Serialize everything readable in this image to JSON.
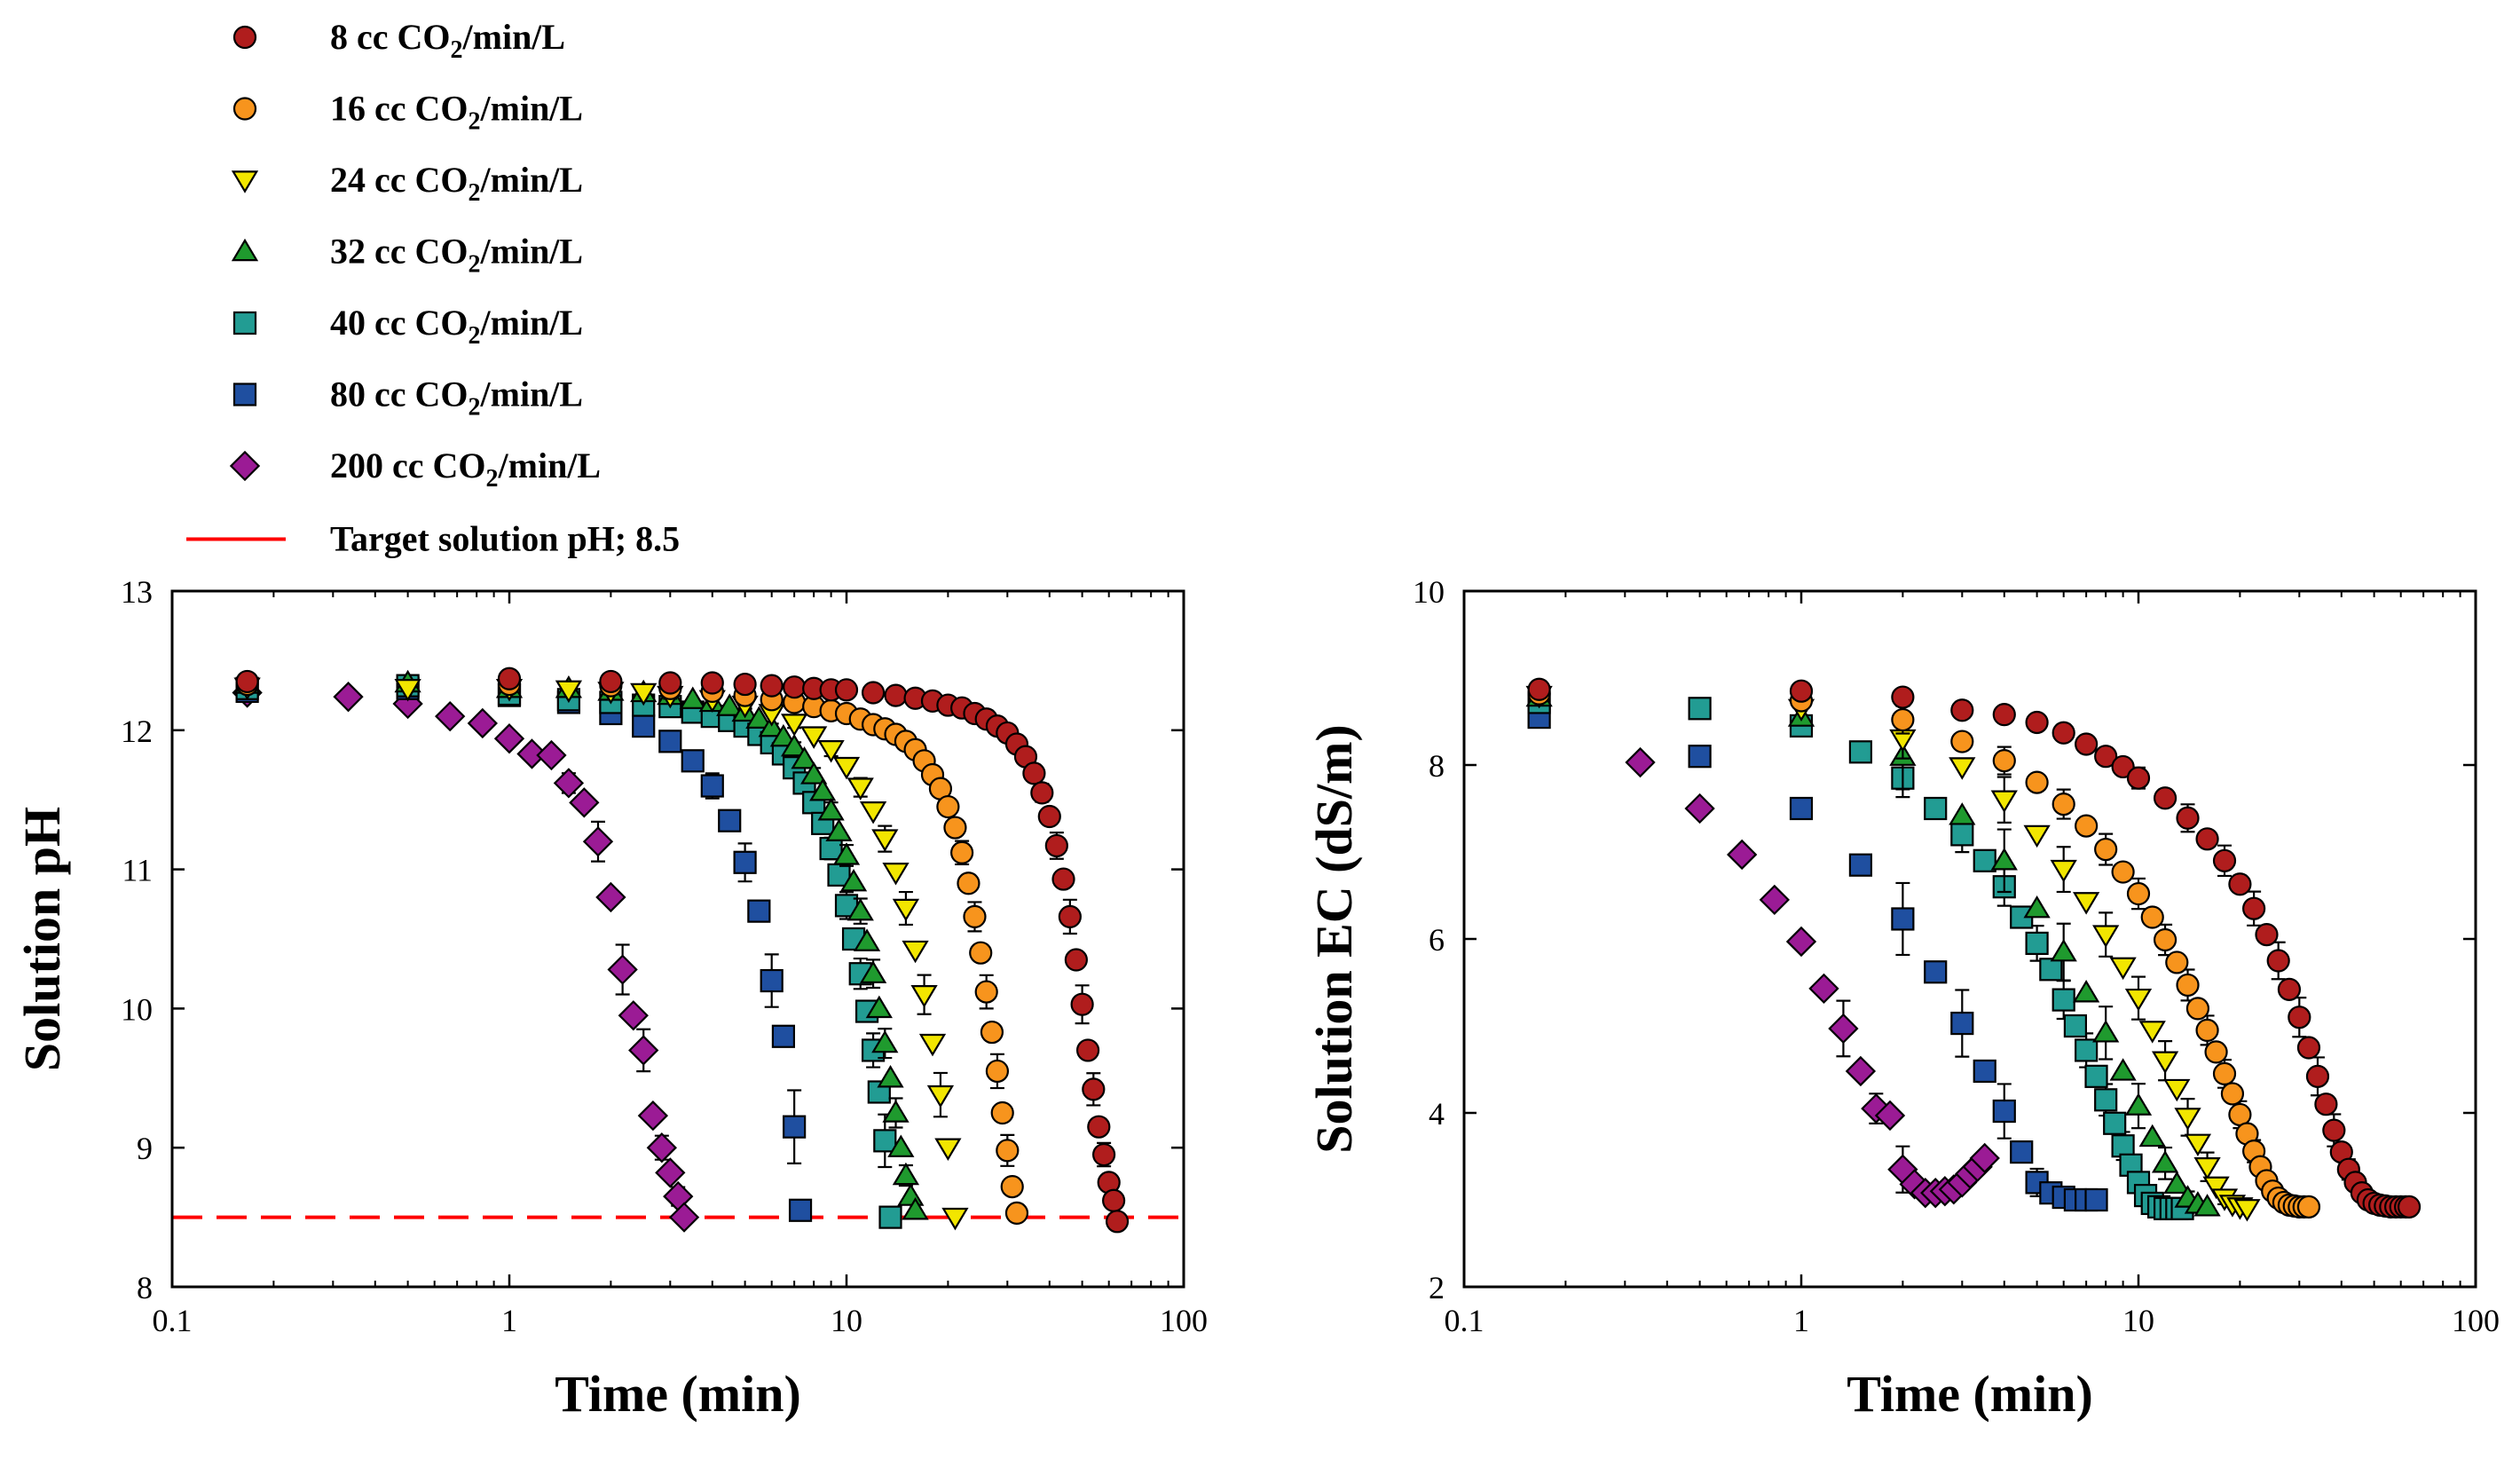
{
  "legend": {
    "items": [
      {
        "series": 0,
        "label_prefix": "8 cc CO",
        "sub": "2",
        "label_suffix": "/min/L"
      },
      {
        "series": 1,
        "label_prefix": "16 cc CO",
        "sub": "2",
        "label_suffix": "/min/L"
      },
      {
        "series": 2,
        "label_prefix": "24 cc CO",
        "sub": "2",
        "label_suffix": "/min/L"
      },
      {
        "series": 3,
        "label_prefix": "32 cc CO",
        "sub": "2",
        "label_suffix": "/min/L"
      },
      {
        "series": 4,
        "label_prefix": "40 cc CO",
        "sub": "2",
        "label_suffix": "/min/L"
      },
      {
        "series": 5,
        "label_prefix": "80 cc CO",
        "sub": "2",
        "label_suffix": "/min/L"
      },
      {
        "series": 6,
        "label_prefix": "200 cc CO",
        "sub": "2",
        "label_suffix": "/min/L"
      }
    ],
    "target_label": "Target solution pH; 8.5"
  },
  "series_style": [
    {
      "marker": "circle",
      "color": "#b01d1d"
    },
    {
      "marker": "circle",
      "color": "#f7941d"
    },
    {
      "marker": "tri-down",
      "color": "#f2e600"
    },
    {
      "marker": "tri-up",
      "color": "#1f9a2e"
    },
    {
      "marker": "square",
      "color": "#229c93"
    },
    {
      "marker": "square",
      "color": "#1f4fa0"
    },
    {
      "marker": "diamond",
      "color": "#9b1b95"
    }
  ],
  "target_line": {
    "value": 8.5,
    "color": "#ff0000"
  },
  "chart_data": [
    {
      "type": "scatter",
      "panel": "left",
      "xlabel": "Time (min)",
      "ylabel": "Solution pH",
      "xscale": "log",
      "xlim": [
        0.1,
        100
      ],
      "ylim": [
        8,
        13
      ],
      "xticks": [
        0.1,
        1,
        10,
        100
      ],
      "xtick_labels": [
        "0.1",
        "1",
        "10",
        "100"
      ],
      "yticks": [
        8,
        9,
        10,
        11,
        12,
        13
      ],
      "ytick_labels": [
        "8",
        "9",
        "10",
        "11",
        "12",
        "13"
      ],
      "series": [
        {
          "name": "8 cc CO2/min/L",
          "tmax": 63.5,
          "alpha": 0.13,
          "beta": 7,
          "x": [
            0.167,
            1,
            2,
            3,
            4,
            5,
            6,
            7,
            8,
            9,
            10,
            12,
            14,
            16,
            18,
            20,
            22,
            24,
            26,
            28,
            30,
            32,
            34,
            36,
            38,
            40,
            42,
            44,
            46,
            48,
            50,
            52,
            54,
            56,
            58,
            60,
            62,
            63.5
          ],
          "y": [
            12.35,
            12.37,
            12.35,
            12.34,
            12.34,
            12.33,
            12.32,
            12.31,
            12.3,
            12.29,
            12.29,
            12.27,
            12.25,
            12.23,
            12.21,
            12.18,
            12.16,
            12.12,
            12.08,
            12.03,
            11.98,
            11.9,
            11.81,
            11.69,
            11.55,
            11.38,
            11.17,
            10.93,
            10.66,
            10.35,
            10.03,
            9.7,
            9.42,
            9.15,
            8.95,
            8.75,
            8.62,
            8.47
          ]
        },
        {
          "name": "16 cc CO2/min/L",
          "tmax": 32,
          "alpha": 0.35,
          "beta": 6,
          "x": [
            0.167,
            1,
            2,
            3,
            4,
            5,
            6,
            7,
            8,
            9,
            10,
            11,
            12,
            13,
            14,
            15,
            16,
            17,
            18,
            19,
            20,
            21,
            22,
            23,
            24,
            25,
            26,
            27,
            28,
            29,
            30,
            31,
            32
          ],
          "y": [
            12.33,
            12.33,
            12.32,
            12.3,
            12.28,
            12.25,
            12.22,
            12.2,
            12.17,
            12.14,
            12.12,
            12.08,
            12.04,
            12.01,
            11.97,
            11.92,
            11.86,
            11.78,
            11.68,
            11.58,
            11.45,
            11.3,
            11.12,
            10.9,
            10.66,
            10.4,
            10.12,
            9.83,
            9.55,
            9.25,
            8.98,
            8.72,
            8.53
          ]
        },
        {
          "name": "24 cc CO2/min/L",
          "tmax": 21,
          "alpha": 0.55,
          "beta": 5,
          "x": [
            0.167,
            0.5,
            1,
            1.5,
            2,
            2.5,
            3,
            4,
            5,
            6,
            7,
            8,
            9,
            10,
            11,
            12,
            13,
            14,
            15,
            16,
            17,
            18,
            19,
            20,
            21
          ],
          "y": [
            12.31,
            12.3,
            12.3,
            12.29,
            12.28,
            12.27,
            12.25,
            12.22,
            12.18,
            12.12,
            12.05,
            11.96,
            11.86,
            11.74,
            11.59,
            11.42,
            11.22,
            10.98,
            10.72,
            10.42,
            10.1,
            9.75,
            9.38,
            9.0,
            8.5
          ]
        },
        {
          "name": "32 cc CO2/min/L",
          "tmax": 16,
          "alpha": 0.7,
          "beta": 4.5,
          "x": [
            0.167,
            0.5,
            1,
            1.5,
            2,
            2.5,
            3,
            3.5,
            4,
            4.5,
            5,
            5.5,
            6,
            6.5,
            7,
            7.5,
            8,
            8.5,
            9,
            9.5,
            10,
            10.5,
            11,
            11.5,
            12,
            12.5,
            13,
            13.5,
            14,
            14.5,
            15,
            15.5,
            16
          ],
          "y": [
            12.33,
            12.34,
            12.3,
            12.3,
            12.28,
            12.27,
            12.25,
            12.22,
            12.2,
            12.17,
            12.13,
            12.08,
            12.02,
            11.95,
            11.88,
            11.79,
            11.68,
            11.56,
            11.42,
            11.27,
            11.1,
            10.91,
            10.7,
            10.48,
            10.25,
            10.0,
            9.75,
            9.5,
            9.25,
            9.0,
            8.8,
            8.65,
            8.55
          ]
        },
        {
          "name": "40 cc CO2/min/L",
          "tmax": 13.5,
          "alpha": 0.8,
          "beta": 4.2,
          "x": [
            0.167,
            0.5,
            1,
            1.5,
            2,
            2.5,
            3,
            3.5,
            4,
            4.5,
            5,
            5.5,
            6,
            6.5,
            7,
            7.5,
            8,
            8.5,
            9,
            9.5,
            10,
            10.5,
            11,
            11.5,
            12,
            12.5,
            13,
            13.5
          ],
          "y": [
            12.3,
            12.32,
            12.26,
            12.22,
            12.2,
            12.18,
            12.17,
            12.13,
            12.1,
            12.07,
            12.03,
            11.97,
            11.91,
            11.83,
            11.73,
            11.62,
            11.48,
            11.33,
            11.15,
            10.96,
            10.74,
            10.5,
            10.25,
            9.98,
            9.7,
            9.4,
            9.05,
            8.5
          ]
        },
        {
          "name": "80 cc CO2/min/L",
          "tmax": 7.3,
          "alpha": 1.1,
          "beta": 3.5,
          "x": [
            0.167,
            0.5,
            1,
            1.5,
            2,
            2.5,
            3,
            3.5,
            4,
            4.5,
            5,
            5.5,
            6,
            6.5,
            7,
            7.3
          ],
          "y": [
            12.28,
            12.3,
            12.25,
            12.2,
            12.12,
            12.03,
            11.92,
            11.78,
            11.6,
            11.35,
            11.05,
            10.7,
            10.2,
            9.8,
            9.15,
            8.55
          ]
        },
        {
          "name": "200 cc CO2/min/L",
          "tmax": 3.3,
          "alpha": 2.1,
          "beta": 2.5,
          "x": [
            0.167,
            0.333,
            0.5,
            0.667,
            0.833,
            1,
            1.167,
            1.333,
            1.5,
            1.667,
            1.833,
            2,
            2.167,
            2.333,
            2.5,
            2.667,
            2.833,
            3,
            3.167,
            3.3
          ],
          "y": [
            12.27,
            12.24,
            12.19,
            12.1,
            12.05,
            11.94,
            11.83,
            11.82,
            11.62,
            11.48,
            11.2,
            10.8,
            10.28,
            9.95,
            9.7,
            9.23,
            9.0,
            8.82,
            8.65,
            8.5
          ]
        }
      ],
      "reference_line": {
        "y": 8.5,
        "label": "Target solution pH; 8.5"
      }
    },
    {
      "type": "scatter",
      "panel": "right",
      "xlabel": "Time (min)",
      "ylabel": "Solution EC (dS/m)",
      "xscale": "log",
      "xlim": [
        0.1,
        100
      ],
      "ylim": [
        2,
        10
      ],
      "xticks": [
        0.1,
        1,
        10,
        100
      ],
      "xtick_labels": [
        "0.1",
        "1",
        "10",
        "100"
      ],
      "yticks": [
        2,
        4,
        6,
        8,
        10
      ],
      "ytick_labels": [
        "2",
        "4",
        "6",
        "8",
        "10"
      ],
      "series": [
        {
          "name": "8 cc CO2/min/L",
          "tmax": 63.5,
          "tmin": 2,
          "x": [
            0.167,
            1,
            2,
            3,
            4,
            5,
            6,
            7,
            8,
            9,
            10,
            12,
            14,
            16,
            18,
            20,
            22,
            24,
            26,
            28,
            30,
            32,
            34,
            36,
            38,
            40,
            42,
            44,
            46,
            48,
            50,
            52,
            54,
            56,
            58,
            60,
            62,
            63.5
          ],
          "y": [
            8.87,
            8.85,
            8.78,
            8.63,
            8.58,
            8.49,
            8.37,
            8.24,
            8.1,
            7.98,
            7.85,
            7.62,
            7.39,
            7.15,
            6.9,
            6.63,
            6.35,
            6.05,
            5.75,
            5.42,
            5.1,
            4.75,
            4.42,
            4.1,
            3.8,
            3.55,
            3.35,
            3.2,
            3.08,
            3.0,
            2.96,
            2.94,
            2.93,
            2.92,
            2.92,
            2.92,
            2.92,
            2.92
          ]
        },
        {
          "name": "16 cc CO2/min/L",
          "tmax": 32,
          "tmin": 2,
          "x": [
            0.167,
            1,
            2,
            3,
            4,
            5,
            6,
            7,
            8,
            9,
            10,
            11,
            12,
            13,
            14,
            15,
            16,
            17,
            18,
            19,
            20,
            21,
            22,
            23,
            24,
            25,
            26,
            27,
            28,
            29,
            30,
            31,
            32
          ],
          "y": [
            8.82,
            8.74,
            8.52,
            8.27,
            8.05,
            7.8,
            7.55,
            7.3,
            7.03,
            6.77,
            6.52,
            6.25,
            5.99,
            5.73,
            5.47,
            5.2,
            4.95,
            4.7,
            4.45,
            4.22,
            3.98,
            3.76,
            3.56,
            3.38,
            3.22,
            3.1,
            3.02,
            2.97,
            2.94,
            2.93,
            2.92,
            2.92,
            2.92
          ]
        },
        {
          "name": "24 cc CO2/min/L",
          "tmax": 21,
          "tmin": 1,
          "x": [
            0.167,
            1,
            2,
            3,
            4,
            5,
            6,
            7,
            8,
            9,
            10,
            11,
            12,
            13,
            14,
            15,
            16,
            17,
            18,
            19,
            20,
            21
          ],
          "y": [
            8.8,
            8.65,
            8.3,
            7.98,
            7.6,
            7.2,
            6.8,
            6.43,
            6.05,
            5.68,
            5.32,
            4.95,
            4.6,
            4.28,
            3.95,
            3.65,
            3.38,
            3.16,
            3.02,
            2.95,
            2.92,
            2.9
          ]
        },
        {
          "name": "32 cc CO2/min/L",
          "tmax": 16,
          "tmin": 1,
          "x": [
            0.167,
            1,
            2,
            3,
            4,
            5,
            6,
            7,
            8,
            9,
            10,
            11,
            12,
            13,
            14,
            15,
            16
          ],
          "y": [
            8.78,
            8.55,
            8.1,
            7.42,
            6.9,
            6.35,
            5.85,
            5.38,
            4.92,
            4.48,
            4.08,
            3.72,
            3.42,
            3.18,
            3.02,
            2.95,
            2.92
          ]
        },
        {
          "name": "40 cc CO2/min/L",
          "tmax": 13.5,
          "tmin": 0.5,
          "x": [
            0.167,
            0.5,
            1,
            1.5,
            2,
            2.5,
            3,
            3.5,
            4,
            4.5,
            5,
            5.5,
            6,
            6.5,
            7,
            7.5,
            8,
            8.5,
            9,
            9.5,
            10,
            10.5,
            11,
            11.5,
            12,
            12.5,
            13,
            13.5
          ],
          "y": [
            8.72,
            8.65,
            8.45,
            8.15,
            7.85,
            7.5,
            7.2,
            6.9,
            6.6,
            6.25,
            5.95,
            5.65,
            5.3,
            5.0,
            4.72,
            4.42,
            4.15,
            3.88,
            3.62,
            3.4,
            3.2,
            3.05,
            2.96,
            2.92,
            2.9,
            2.9,
            2.9,
            2.9
          ]
        },
        {
          "name": "80 cc CO2/min/L",
          "tmax": 7.5,
          "tmin": 0.5,
          "x": [
            0.167,
            0.5,
            1,
            1.5,
            2,
            2.5,
            3,
            3.5,
            4,
            4.5,
            5,
            5.5,
            6,
            6.5,
            7,
            7.5
          ],
          "y": [
            8.55,
            8.1,
            7.5,
            6.85,
            6.23,
            5.62,
            5.03,
            4.48,
            4.02,
            3.55,
            3.2,
            3.08,
            3.03,
            3.0,
            3.0,
            3.0
          ]
        },
        {
          "name": "200 cc CO2/min/L",
          "tmax": 3.5,
          "tmin": 0.3,
          "x": [
            0.333,
            0.5,
            0.667,
            0.833,
            1,
            1.167,
            1.333,
            1.5,
            1.667,
            1.833,
            2,
            2.167,
            2.333,
            2.5,
            2.667,
            2.833,
            3,
            3.167,
            3.333,
            3.5
          ],
          "y": [
            8.03,
            7.5,
            6.97,
            6.45,
            5.97,
            5.43,
            4.97,
            4.48,
            4.05,
            3.97,
            3.35,
            3.18,
            3.08,
            3.08,
            3.1,
            3.12,
            3.2,
            3.3,
            3.38,
            3.48
          ]
        }
      ]
    }
  ]
}
